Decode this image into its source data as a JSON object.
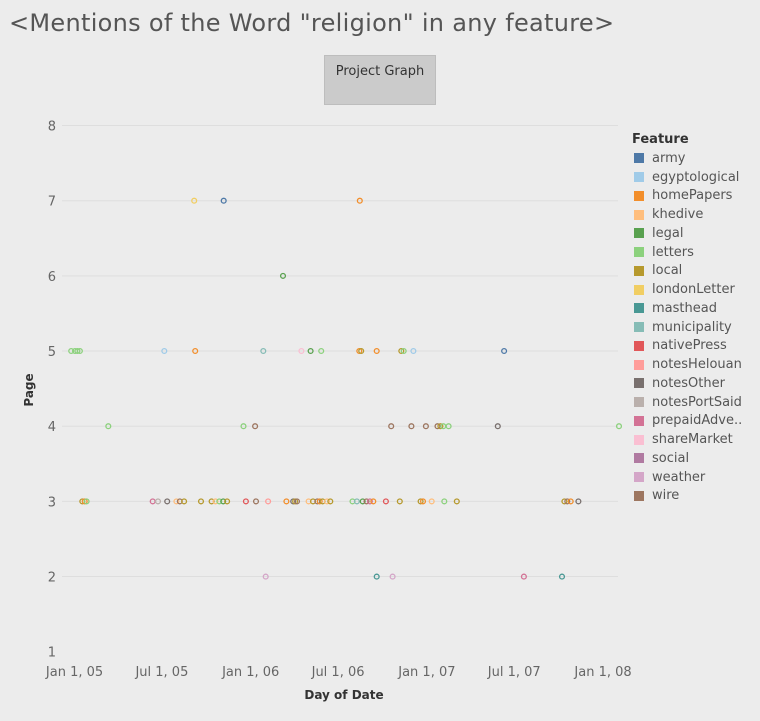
{
  "title": "<Mentions of the Word \"religion\" in any feature>",
  "project_button": {
    "label": "Project Graph"
  },
  "legend": {
    "title": "Feature",
    "items": [
      {
        "label": "army",
        "color": "#4e79a7"
      },
      {
        "label": "egyptological",
        "color": "#a0cbe8"
      },
      {
        "label": "homePapers",
        "color": "#f28e2b"
      },
      {
        "label": "khedive",
        "color": "#ffbe7d"
      },
      {
        "label": "legal",
        "color": "#59a14f"
      },
      {
        "label": "letters",
        "color": "#8cd17d"
      },
      {
        "label": "local",
        "color": "#b6992d"
      },
      {
        "label": "londonLetter",
        "color": "#f1ce63"
      },
      {
        "label": "masthead",
        "color": "#499894"
      },
      {
        "label": "municipality",
        "color": "#86bcb6"
      },
      {
        "label": "nativePress",
        "color": "#e15759"
      },
      {
        "label": "notesHelouan",
        "color": "#ff9d9a"
      },
      {
        "label": "notesOther",
        "color": "#79706e"
      },
      {
        "label": "notesPortSaid",
        "color": "#bab0ac"
      },
      {
        "label": "prepaidAdve..",
        "color": "#d37295"
      },
      {
        "label": "shareMarket",
        "color": "#fabfd2"
      },
      {
        "label": "social",
        "color": "#b07aa1"
      },
      {
        "label": "weather",
        "color": "#d4a6c8"
      },
      {
        "label": "wire",
        "color": "#9d7660"
      }
    ]
  },
  "chart_data": {
    "type": "scatter",
    "title": "<Mentions of the Word \"religion\" in any feature>",
    "xlabel": "Day of Date",
    "ylabel": "Page",
    "x_type": "date",
    "xlim": [
      "2004-12-06",
      "2008-02-01"
    ],
    "ylim": [
      0.85,
      8.1
    ],
    "x_ticks": [
      {
        "date": "2005-01-01",
        "label": "Jan 1, 05"
      },
      {
        "date": "2005-07-01",
        "label": "Jul 1, 05"
      },
      {
        "date": "2006-01-01",
        "label": "Jan 1, 06"
      },
      {
        "date": "2006-07-01",
        "label": "Jul 1, 06"
      },
      {
        "date": "2007-01-01",
        "label": "Jan 1, 07"
      },
      {
        "date": "2007-07-01",
        "label": "Jul 1, 07"
      },
      {
        "date": "2008-01-01",
        "label": "Jan 1, 08"
      }
    ],
    "y_ticks": [
      1,
      2,
      3,
      4,
      5,
      6,
      7,
      8
    ],
    "gridlines": "horizontal",
    "legend_position": "right",
    "points": [
      {
        "date": "2004-12-25",
        "page": 5,
        "feature": "letters"
      },
      {
        "date": "2005-01-02",
        "page": 5,
        "feature": "letters"
      },
      {
        "date": "2005-01-07",
        "page": 5,
        "feature": "letters"
      },
      {
        "date": "2005-01-12",
        "page": 5,
        "feature": "letters"
      },
      {
        "date": "2005-01-17",
        "page": 3,
        "feature": "local"
      },
      {
        "date": "2005-01-22",
        "page": 3,
        "feature": "homePapers"
      },
      {
        "date": "2005-01-26",
        "page": 3,
        "feature": "letters"
      },
      {
        "date": "2005-03-12",
        "page": 4,
        "feature": "letters"
      },
      {
        "date": "2005-06-12",
        "page": 3,
        "feature": "prepaidAdve.."
      },
      {
        "date": "2005-06-23",
        "page": 3,
        "feature": "notesPortSaid"
      },
      {
        "date": "2005-07-06",
        "page": 5,
        "feature": "egyptological"
      },
      {
        "date": "2005-07-12",
        "page": 3,
        "feature": "notesOther"
      },
      {
        "date": "2005-07-31",
        "page": 3,
        "feature": "khedive"
      },
      {
        "date": "2005-08-07",
        "page": 3,
        "feature": "wire"
      },
      {
        "date": "2005-08-16",
        "page": 3,
        "feature": "local"
      },
      {
        "date": "2005-09-08",
        "page": 5,
        "feature": "homePapers"
      },
      {
        "date": "2005-09-06",
        "page": 7,
        "feature": "londonLetter"
      },
      {
        "date": "2005-09-20",
        "page": 3,
        "feature": "local"
      },
      {
        "date": "2005-10-12",
        "page": 3,
        "feature": "local"
      },
      {
        "date": "2005-10-20",
        "page": 3,
        "feature": "khedive"
      },
      {
        "date": "2005-10-28",
        "page": 3,
        "feature": "letters"
      },
      {
        "date": "2005-11-05",
        "page": 3,
        "feature": "legal"
      },
      {
        "date": "2005-11-06",
        "page": 7,
        "feature": "army"
      },
      {
        "date": "2005-11-13",
        "page": 3,
        "feature": "local"
      },
      {
        "date": "2005-12-17",
        "page": 4,
        "feature": "letters"
      },
      {
        "date": "2005-12-22",
        "page": 3,
        "feature": "nativePress"
      },
      {
        "date": "2006-01-10",
        "page": 4,
        "feature": "wire"
      },
      {
        "date": "2006-01-12",
        "page": 3,
        "feature": "wire"
      },
      {
        "date": "2006-01-27",
        "page": 5,
        "feature": "municipality"
      },
      {
        "date": "2006-02-01",
        "page": 2,
        "feature": "weather"
      },
      {
        "date": "2006-02-06",
        "page": 3,
        "feature": "notesHelouan"
      },
      {
        "date": "2006-03-09",
        "page": 6,
        "feature": "legal"
      },
      {
        "date": "2006-03-16",
        "page": 3,
        "feature": "homePapers"
      },
      {
        "date": "2006-03-30",
        "page": 3,
        "feature": "notesOther"
      },
      {
        "date": "2006-04-03",
        "page": 3,
        "feature": "local"
      },
      {
        "date": "2006-04-07",
        "page": 3,
        "feature": "wire"
      },
      {
        "date": "2006-04-16",
        "page": 5,
        "feature": "shareMarket"
      },
      {
        "date": "2006-05-01",
        "page": 3,
        "feature": "khedive"
      },
      {
        "date": "2006-05-05",
        "page": 5,
        "feature": "legal"
      },
      {
        "date": "2006-05-10",
        "page": 3,
        "feature": "local"
      },
      {
        "date": "2006-05-19",
        "page": 3,
        "feature": "wire"
      },
      {
        "date": "2006-05-24",
        "page": 3,
        "feature": "homePapers"
      },
      {
        "date": "2006-05-27",
        "page": 5,
        "feature": "letters"
      },
      {
        "date": "2006-05-30",
        "page": 3,
        "feature": "local"
      },
      {
        "date": "2006-06-08",
        "page": 3,
        "feature": "khedive"
      },
      {
        "date": "2006-06-15",
        "page": 3,
        "feature": "local"
      },
      {
        "date": "2006-07-31",
        "page": 3,
        "feature": "letters"
      },
      {
        "date": "2006-08-09",
        "page": 3,
        "feature": "municipality"
      },
      {
        "date": "2006-08-14",
        "page": 5,
        "feature": "homePapers"
      },
      {
        "date": "2006-08-15",
        "page": 7,
        "feature": "homePapers"
      },
      {
        "date": "2006-08-18",
        "page": 5,
        "feature": "local"
      },
      {
        "date": "2006-08-21",
        "page": 3,
        "feature": "legal"
      },
      {
        "date": "2006-08-29",
        "page": 3,
        "feature": "wire"
      },
      {
        "date": "2006-09-05",
        "page": 3,
        "feature": "prepaidAdve.."
      },
      {
        "date": "2006-09-12",
        "page": 3,
        "feature": "homePapers"
      },
      {
        "date": "2006-09-19",
        "page": 5,
        "feature": "homePapers"
      },
      {
        "date": "2006-09-19",
        "page": 2,
        "feature": "masthead"
      },
      {
        "date": "2006-10-08",
        "page": 3,
        "feature": "nativePress"
      },
      {
        "date": "2006-10-19",
        "page": 4,
        "feature": "wire"
      },
      {
        "date": "2006-10-22",
        "page": 2,
        "feature": "weather"
      },
      {
        "date": "2006-11-06",
        "page": 3,
        "feature": "local"
      },
      {
        "date": "2006-11-09",
        "page": 5,
        "feature": "local"
      },
      {
        "date": "2006-11-14",
        "page": 5,
        "feature": "letters"
      },
      {
        "date": "2006-11-30",
        "page": 4,
        "feature": "wire"
      },
      {
        "date": "2006-12-04",
        "page": 5,
        "feature": "egyptological"
      },
      {
        "date": "2006-12-19",
        "page": 3,
        "feature": "local"
      },
      {
        "date": "2006-12-24",
        "page": 3,
        "feature": "homePapers"
      },
      {
        "date": "2006-12-30",
        "page": 4,
        "feature": "wire"
      },
      {
        "date": "2007-01-11",
        "page": 3,
        "feature": "khedive"
      },
      {
        "date": "2007-01-23",
        "page": 4,
        "feature": "wire"
      },
      {
        "date": "2007-01-29",
        "page": 4,
        "feature": "local"
      },
      {
        "date": "2007-02-04",
        "page": 4,
        "feature": "letters"
      },
      {
        "date": "2007-02-06",
        "page": 3,
        "feature": "letters"
      },
      {
        "date": "2007-02-15",
        "page": 4,
        "feature": "letters"
      },
      {
        "date": "2007-03-04",
        "page": 3,
        "feature": "local"
      },
      {
        "date": "2007-05-28",
        "page": 4,
        "feature": "notesOther"
      },
      {
        "date": "2007-06-10",
        "page": 5,
        "feature": "army"
      },
      {
        "date": "2007-07-21",
        "page": 2,
        "feature": "prepaidAdve.."
      },
      {
        "date": "2007-10-08",
        "page": 2,
        "feature": "masthead"
      },
      {
        "date": "2007-10-13",
        "page": 3,
        "feature": "local"
      },
      {
        "date": "2007-10-19",
        "page": 3,
        "feature": "wire"
      },
      {
        "date": "2007-10-26",
        "page": 3,
        "feature": "homePapers"
      },
      {
        "date": "2007-11-11",
        "page": 3,
        "feature": "notesOther"
      },
      {
        "date": "2008-02-03",
        "page": 4,
        "feature": "letters"
      }
    ]
  }
}
